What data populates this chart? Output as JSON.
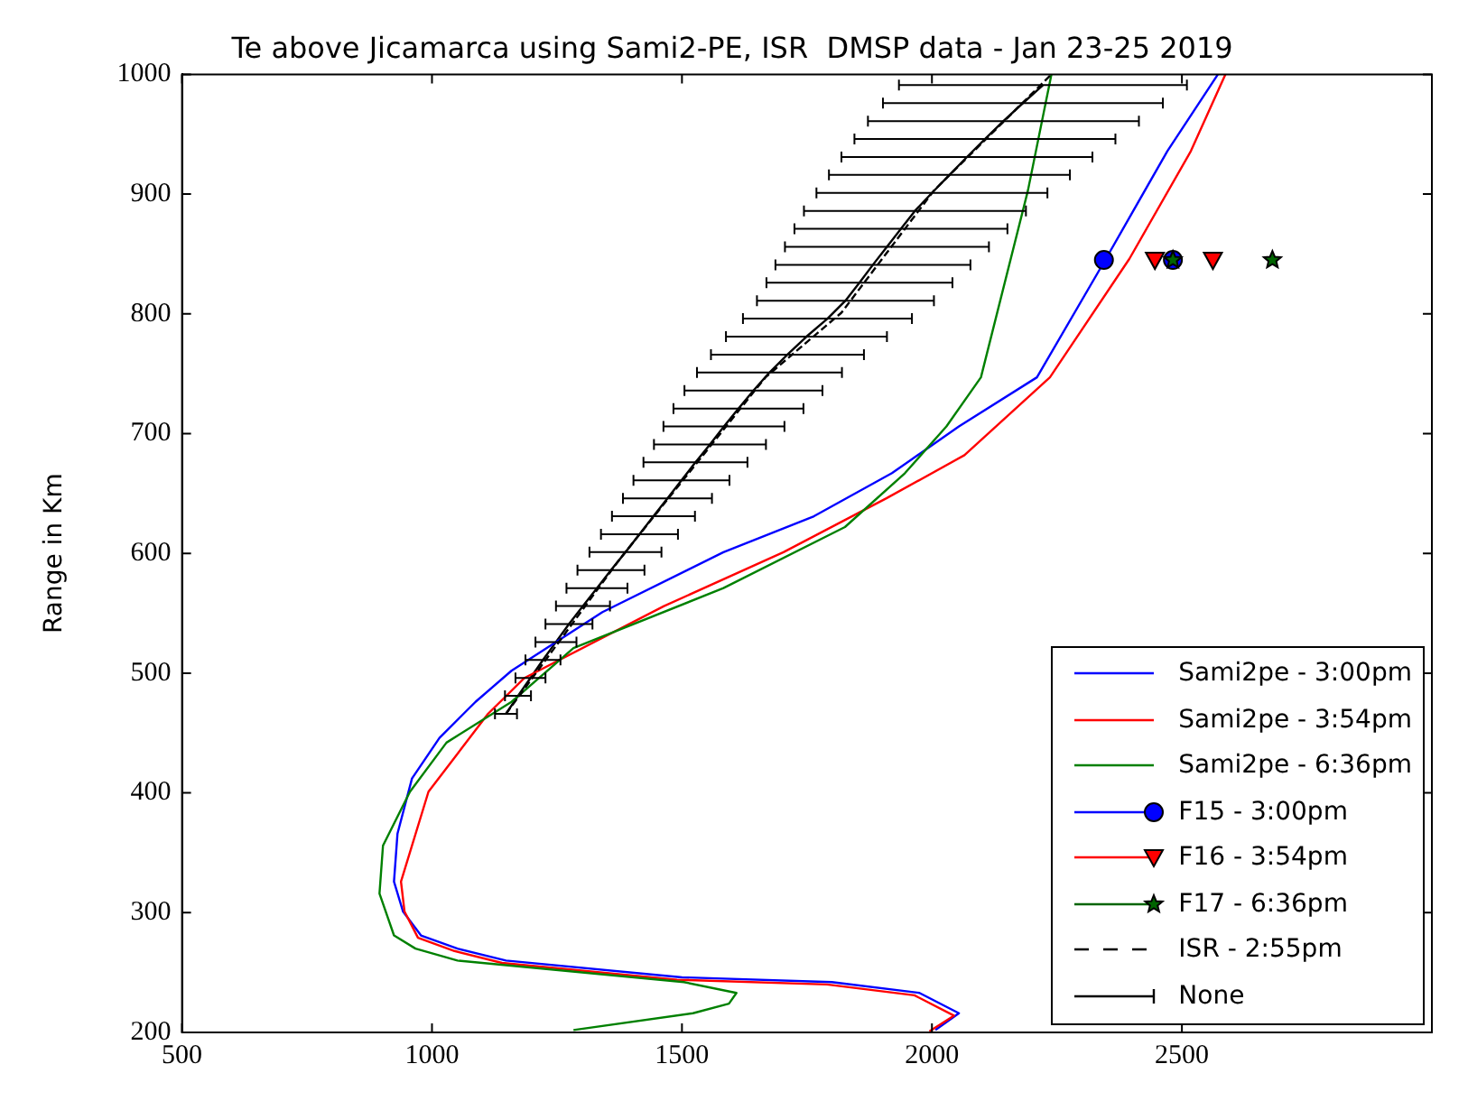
{
  "chart_data": {
    "type": "line",
    "title": "Te above Jicamarca using Sami2-PE, ISR  DMSP data - Jan 23-25 2019",
    "ylabel": "Range in Km",
    "xlim": [
      500,
      3000
    ],
    "xticks": [
      500,
      1000,
      1500,
      2000,
      2500
    ],
    "ylim": [
      200,
      1000
    ],
    "yticks": [
      200,
      300,
      400,
      500,
      600,
      700,
      800,
      900,
      1000
    ],
    "grid": false,
    "legend": "bottom right",
    "series": [
      {
        "name": "Sami2pe - 3:00pm",
        "type": "line",
        "color": "#0000ff",
        "marker": "none",
        "line_style": "solid",
        "x": [
          2007,
          2054,
          1975,
          1800,
          1500,
          1148,
          1051,
          978,
          942,
          924,
          931,
          960,
          1015,
          1087,
          1159,
          1341,
          1583,
          1764,
          1920,
          2054,
          2210,
          2348,
          2471,
          2572
        ],
        "values": [
          202,
          216,
          233,
          242,
          246,
          260,
          270,
          281,
          301,
          326,
          366,
          412,
          446,
          476,
          502,
          551,
          601,
          631,
          667,
          706,
          747,
          846,
          936,
          1000
        ]
      },
      {
        "name": "Sami2pe - 3:54pm",
        "type": "line",
        "color": "#ff0000",
        "marker": "none",
        "line_style": "solid",
        "x": [
          1995,
          2044,
          1965,
          1790,
          1490,
          1140,
          1045,
          972,
          945,
          938,
          993,
          1112,
          1185,
          1464,
          1703,
          1909,
          2065,
          2236,
          2395,
          2518,
          2587
        ],
        "values": [
          201,
          214,
          231,
          240,
          244,
          258,
          268,
          279,
          301,
          326,
          401,
          466,
          496,
          556,
          601,
          646,
          682,
          747,
          846,
          936,
          1000
        ]
      },
      {
        "name": "Sami2pe - 6:36pm",
        "type": "line",
        "color": "#008000",
        "marker": "none",
        "line_style": "solid",
        "x": [
          1283,
          1522,
          1594,
          1609,
          1504,
          1051,
          967,
          924,
          895,
          902,
          956,
          1029,
          1159,
          1283,
          1583,
          1826,
          1946,
          2029,
          2098,
          2192,
          2239
        ],
        "values": [
          202,
          216,
          224,
          233,
          242,
          260,
          270,
          281,
          316,
          356,
          401,
          442,
          476,
          521,
          571,
          622,
          667,
          706,
          747,
          903,
          1000
        ]
      },
      {
        "name": "F15 - 3:00pm",
        "type": "scatter",
        "color": "#0000ff",
        "marker": "circle",
        "x": [
          2344,
          2482
        ],
        "values": [
          845,
          845
        ]
      },
      {
        "name": "F16 - 3:54pm",
        "type": "scatter",
        "color": "#ff0000",
        "marker": "triangle",
        "x": [
          2446,
          2562
        ],
        "values": [
          845,
          845
        ]
      },
      {
        "name": "F17 - 6:36pm",
        "type": "scatter",
        "color": "#006400",
        "marker": "star",
        "x": [
          2482,
          2681
        ],
        "values": [
          845,
          845
        ]
      },
      {
        "name": "ISR - 2:55pm",
        "type": "line",
        "color": "#000000",
        "marker": "none",
        "line_style": "dashed",
        "x": [
          1148,
          1377,
          1667,
          1819,
          2004,
          2239
        ],
        "values": [
          466,
          596,
          747,
          801,
          903,
          1000
        ]
      },
      {
        "name": "None",
        "type": "line",
        "color": "#000000",
        "marker": "none",
        "line_style": "solid",
        "x": [
          1148,
          1172,
          1197,
          1222,
          1248,
          1274,
          1302,
          1330,
          1358,
          1387,
          1415,
          1443,
          1471,
          1499,
          1527,
          1556,
          1584,
          1613,
          1643,
          1675,
          1711,
          1749,
          1791,
          1827,
          1855,
          1882,
          1910,
          1938,
          1966,
          2000,
          2035,
          2070,
          2106,
          2143,
          2182,
          2222
        ],
        "values": [
          466,
          481,
          496,
          511,
          526,
          541,
          556,
          571,
          586,
          601,
          616,
          631,
          646,
          661,
          676,
          691,
          706,
          721,
          736,
          751,
          766,
          781,
          796,
          811,
          826,
          841,
          856,
          871,
          886,
          901,
          916,
          931,
          946,
          961,
          976,
          991
        ],
        "xerrors": [
          22,
          26,
          30,
          35,
          41,
          47,
          54,
          61,
          67,
          72,
          77,
          83,
          89,
          96,
          104,
          112,
          121,
          130,
          138,
          145,
          153,
          161,
          169,
          177,
          186,
          195,
          204,
          213,
          222,
          231,
          241,
          251,
          261,
          271,
          280,
          288
        ]
      }
    ]
  }
}
